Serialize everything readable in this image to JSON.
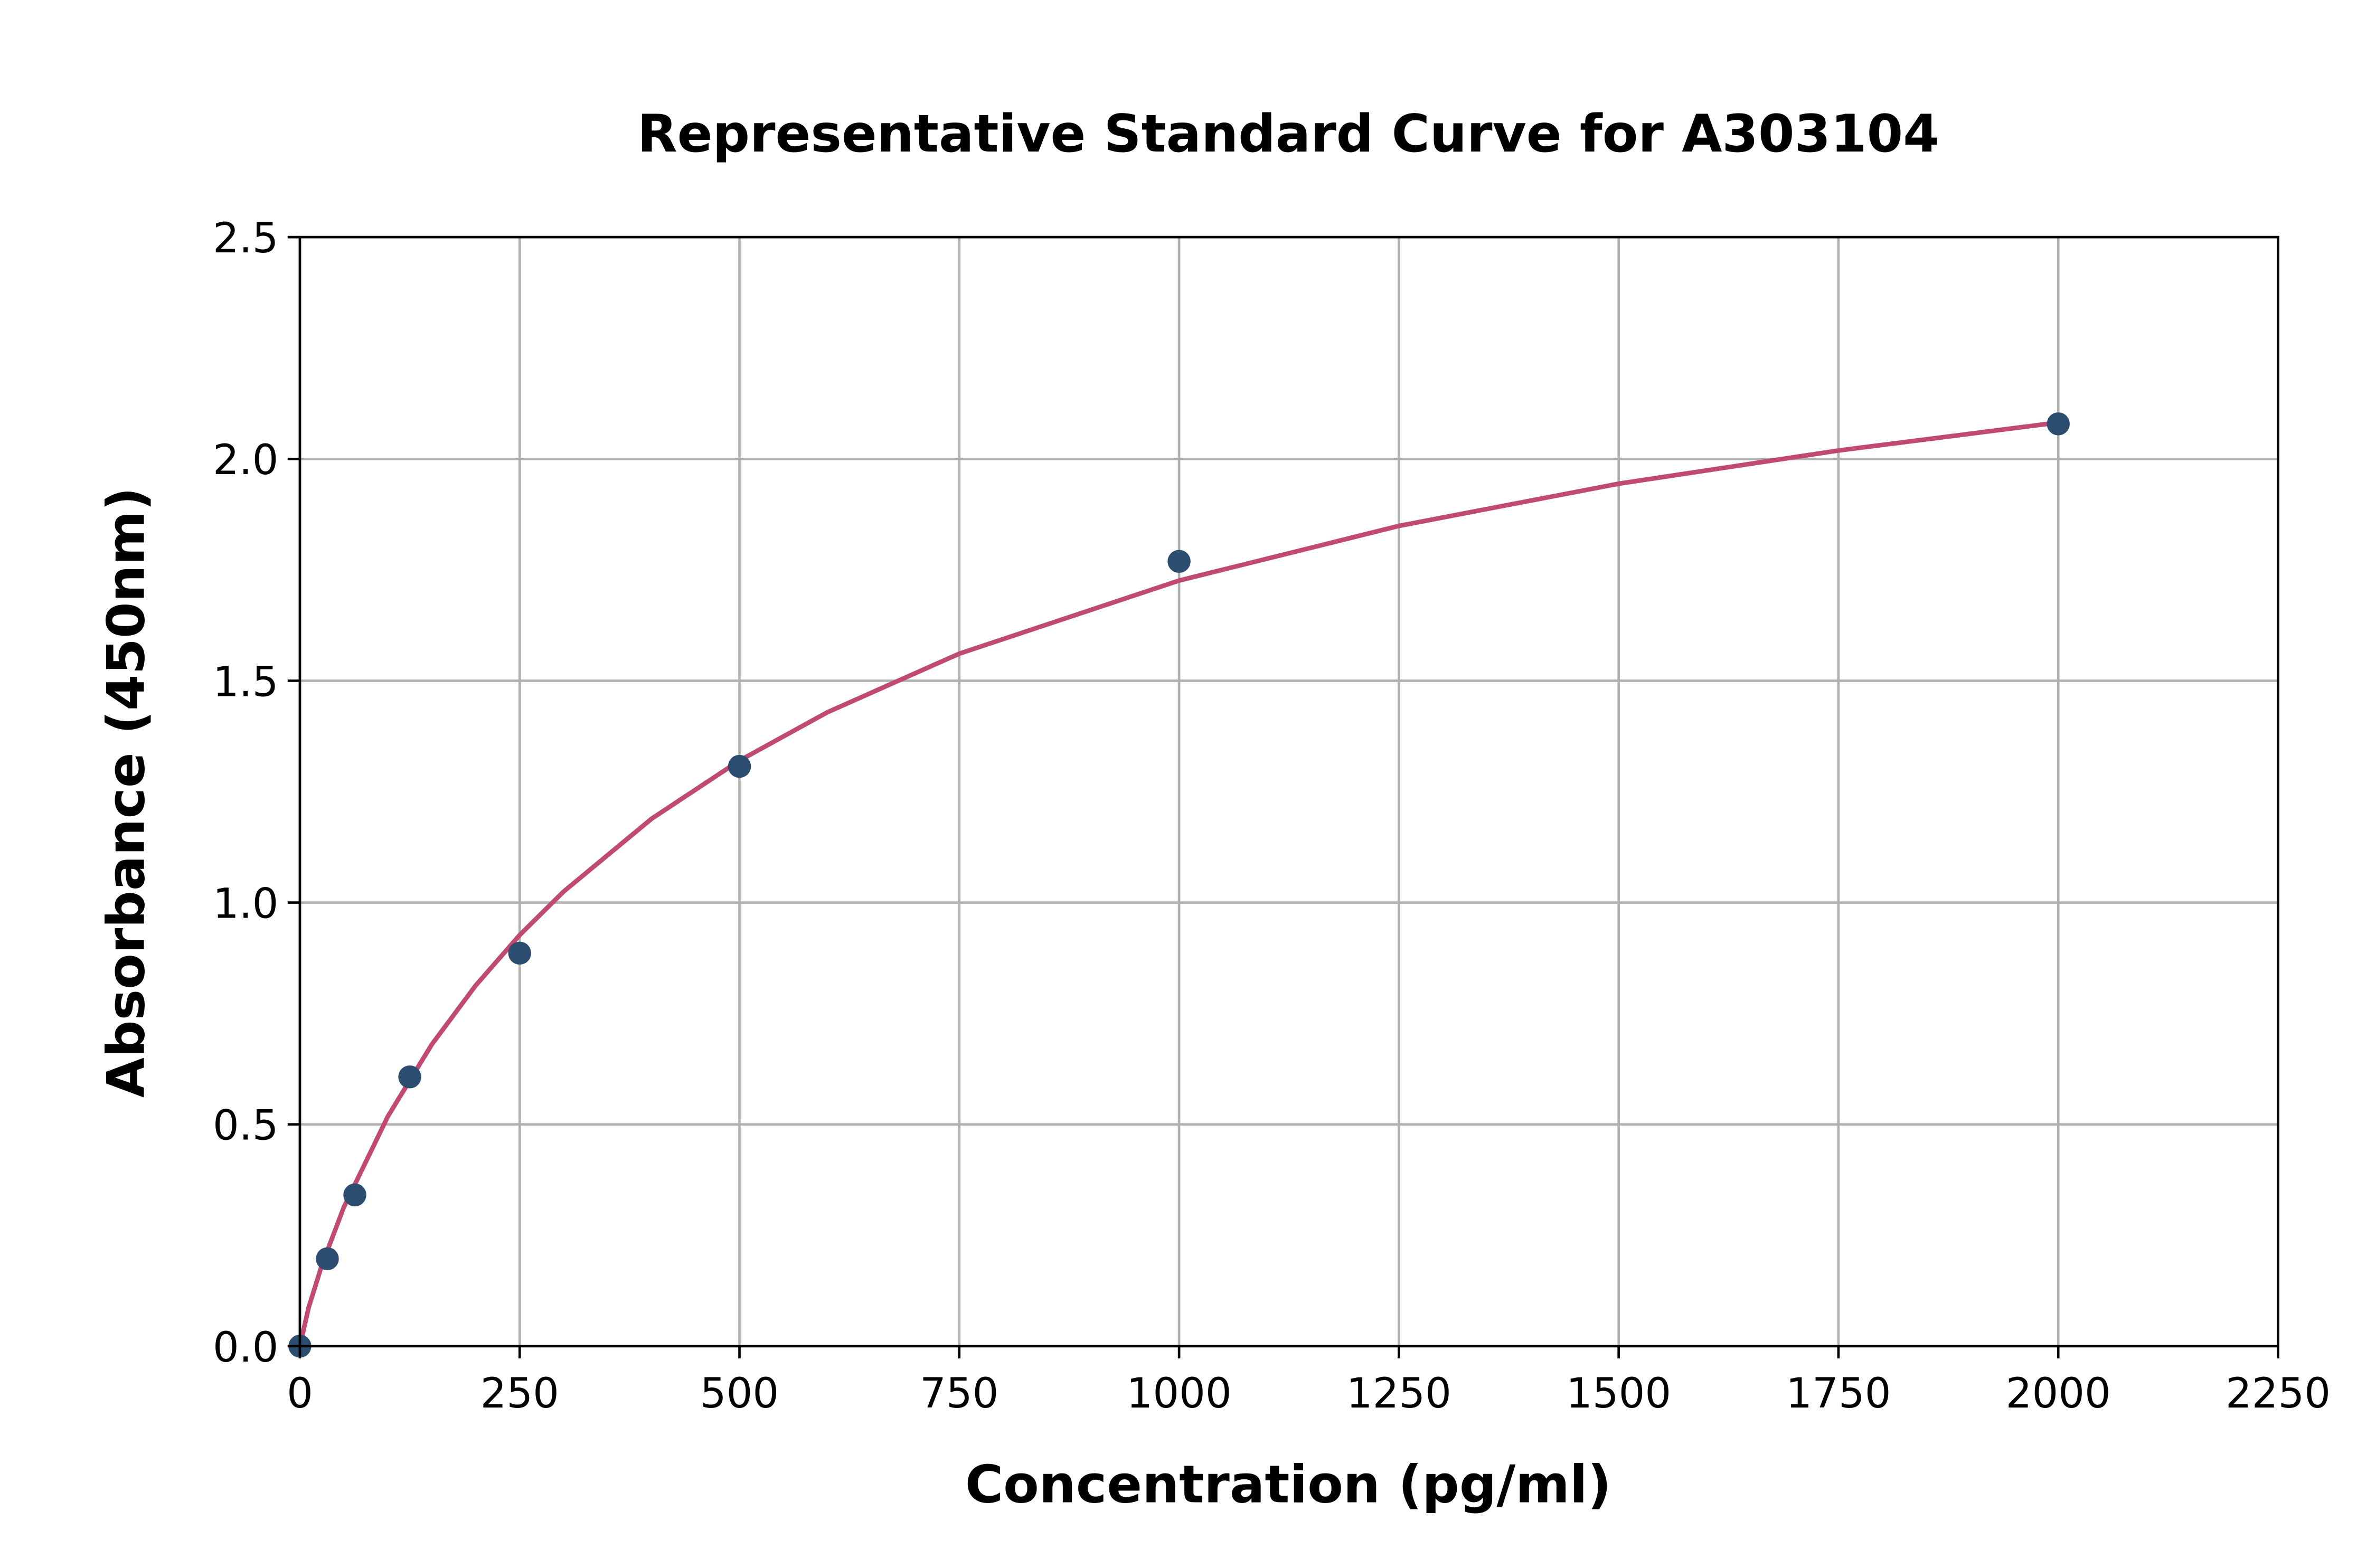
{
  "chart_data": {
    "type": "scatter",
    "title": "Representative Standard Curve for A303104",
    "xlabel": "Concentration (pg/ml)",
    "ylabel": "Absorbance (450nm)",
    "xlim": [
      0,
      2250
    ],
    "ylim": [
      0,
      2.5
    ],
    "xticks": [
      "0",
      "250",
      "500",
      "750",
      "1000",
      "1250",
      "1500",
      "1750",
      "2000",
      "2250"
    ],
    "yticks": [
      "0.0",
      "0.5",
      "1.0",
      "1.5",
      "2.0",
      "2.5"
    ],
    "grid": true,
    "points": {
      "x": [
        0,
        31.25,
        62.5,
        125,
        250,
        500,
        1000,
        2000
      ],
      "y": [
        0.0,
        0.197,
        0.341,
        0.607,
        0.886,
        1.307,
        1.769,
        2.079
      ]
    },
    "fit_curve": {
      "x": [
        0,
        10,
        25,
        50,
        100,
        150,
        200,
        250,
        300,
        400,
        500,
        600,
        750,
        1000,
        1250,
        1500,
        1750,
        2000
      ],
      "y": [
        0,
        0.087,
        0.183,
        0.313,
        0.518,
        0.68,
        0.813,
        0.927,
        1.025,
        1.189,
        1.32,
        1.429,
        1.561,
        1.726,
        1.849,
        1.944,
        2.019,
        2.082
      ]
    },
    "colors": {
      "points": "#2d4d70",
      "curve": "#c04a72",
      "grid": "#b0b0b0"
    }
  }
}
